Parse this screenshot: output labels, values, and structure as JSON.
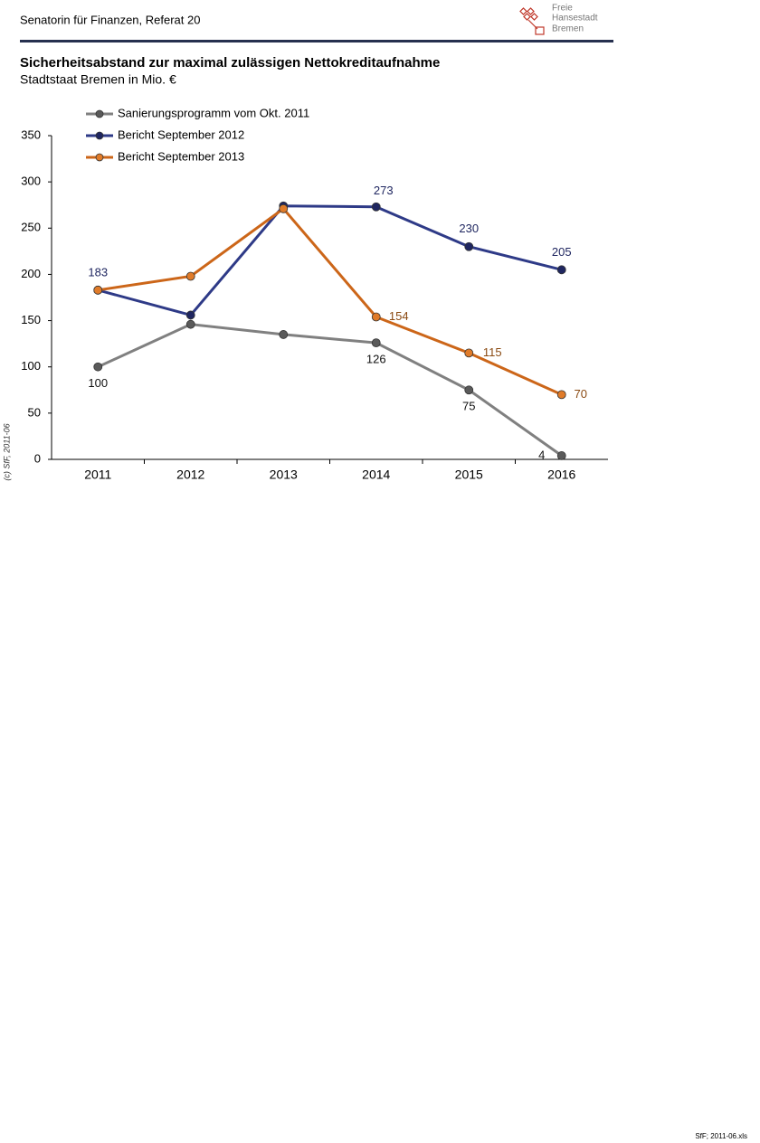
{
  "header": {
    "title": "Senatorin für Finanzen, Referat 20",
    "logo": [
      "Freie",
      "Hansestadt",
      "Bremen"
    ]
  },
  "side_note": "(c) SfF, 2011-06",
  "footer": "SfF; 2011-06.xls",
  "chart_data": {
    "type": "line",
    "title": "Sicherheitsabstand zur maximal zulässigen Nettokreditaufnahme",
    "subtitle": "Stadtstaat Bremen in Mio. €",
    "categories": [
      "2011",
      "2012",
      "2013",
      "2014",
      "2015",
      "2016"
    ],
    "series": [
      {
        "name": "Sanierungsprogramm vom Okt. 2011",
        "color": "#808080",
        "marker": "#5a5a5a",
        "values": [
          100,
          146,
          135,
          126,
          75,
          4
        ],
        "value_labels": [
          "100",
          null,
          null,
          "126",
          "75",
          "4"
        ]
      },
      {
        "name": "Bericht September 2012",
        "color": "#2e3a87",
        "marker": "#1f2660",
        "values": [
          183,
          156,
          274,
          273,
          230,
          205
        ],
        "value_labels": [
          "183",
          null,
          null,
          "273",
          "230",
          "205"
        ]
      },
      {
        "name": "Bericht September 2013",
        "color": "#cc6619",
        "marker": "#e07b29",
        "values": [
          183,
          198,
          271,
          154,
          115,
          70
        ],
        "value_labels": [
          null,
          null,
          null,
          "154",
          "115",
          "70"
        ]
      }
    ],
    "ylim": [
      0,
      350
    ],
    "yticks": [
      0,
      50,
      100,
      150,
      200,
      250,
      300,
      350
    ],
    "grid": false
  }
}
